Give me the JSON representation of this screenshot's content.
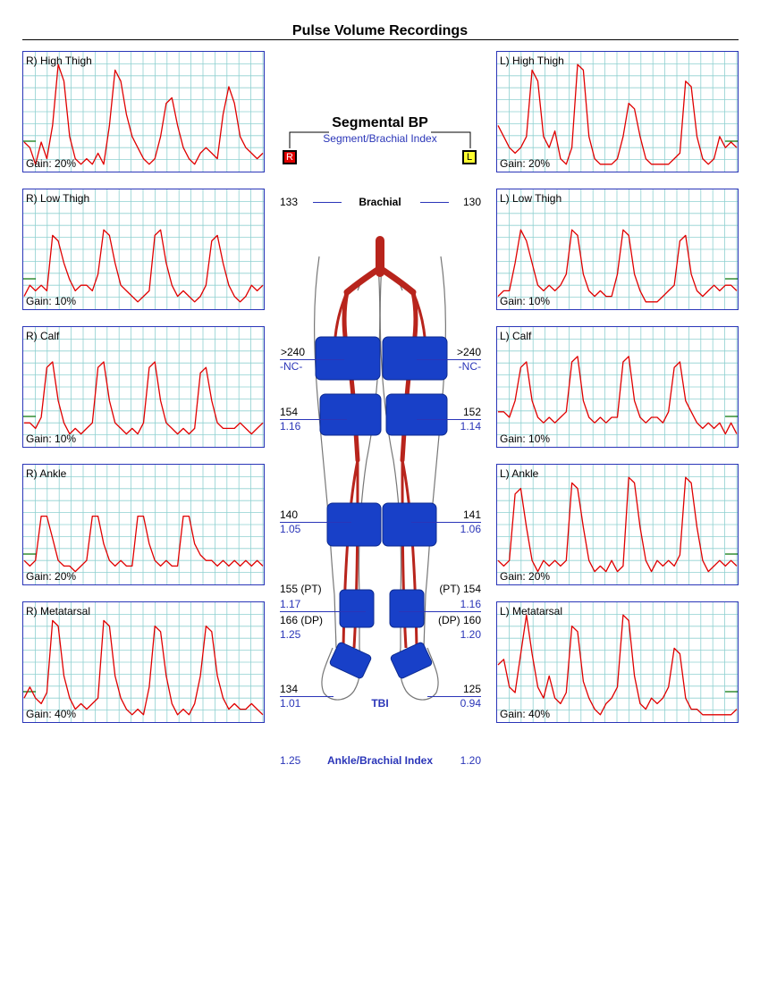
{
  "page_title": "Pulse Volume Recordings",
  "colors": {
    "waveform": "#e00000",
    "grid": "#8fd0d0",
    "frame": "#2a35b8",
    "index_text": "#2a35b8",
    "cuff": "#1840c8",
    "artery": "#b8241c",
    "gain_marker": "#007000"
  },
  "panels": {
    "right": [
      {
        "label": "R) High Thigh",
        "gain": "Gain: 20%",
        "wave": [
          0.25,
          0.2,
          0.05,
          0.25,
          0.1,
          0.4,
          0.95,
          0.8,
          0.3,
          0.1,
          0.05,
          0.1,
          0.05,
          0.15,
          0.05,
          0.4,
          0.9,
          0.8,
          0.5,
          0.3,
          0.2,
          0.1,
          0.05,
          0.1,
          0.3,
          0.6,
          0.65,
          0.4,
          0.2,
          0.1,
          0.05,
          0.15,
          0.2,
          0.15,
          0.1,
          0.5,
          0.75,
          0.6,
          0.3,
          0.2,
          0.15,
          0.1,
          0.15
        ]
      },
      {
        "label": "R) Low Thigh",
        "gain": "Gain: 10%",
        "wave": [
          0.1,
          0.2,
          0.15,
          0.2,
          0.15,
          0.65,
          0.6,
          0.4,
          0.25,
          0.15,
          0.2,
          0.2,
          0.15,
          0.3,
          0.7,
          0.65,
          0.4,
          0.2,
          0.15,
          0.1,
          0.05,
          0.1,
          0.15,
          0.65,
          0.7,
          0.4,
          0.2,
          0.1,
          0.15,
          0.1,
          0.05,
          0.1,
          0.2,
          0.6,
          0.65,
          0.4,
          0.2,
          0.1,
          0.05,
          0.1,
          0.2,
          0.15,
          0.2
        ]
      },
      {
        "label": "R) Calf",
        "gain": "Gain: 10%",
        "wave": [
          0.2,
          0.2,
          0.15,
          0.25,
          0.7,
          0.75,
          0.4,
          0.2,
          0.1,
          0.15,
          0.1,
          0.15,
          0.2,
          0.7,
          0.75,
          0.4,
          0.2,
          0.15,
          0.1,
          0.15,
          0.1,
          0.2,
          0.7,
          0.75,
          0.4,
          0.2,
          0.15,
          0.1,
          0.15,
          0.1,
          0.15,
          0.65,
          0.7,
          0.4,
          0.2,
          0.15,
          0.15,
          0.15,
          0.2,
          0.15,
          0.1,
          0.15,
          0.2
        ]
      },
      {
        "label": "R) Ankle",
        "gain": "Gain: 20%",
        "wave": [
          0.2,
          0.15,
          0.2,
          0.6,
          0.6,
          0.4,
          0.2,
          0.15,
          0.15,
          0.1,
          0.15,
          0.2,
          0.6,
          0.6,
          0.35,
          0.2,
          0.15,
          0.2,
          0.15,
          0.15,
          0.6,
          0.6,
          0.35,
          0.2,
          0.15,
          0.2,
          0.15,
          0.15,
          0.6,
          0.6,
          0.35,
          0.25,
          0.2,
          0.2,
          0.15,
          0.2,
          0.15,
          0.2,
          0.15,
          0.2,
          0.15,
          0.2,
          0.15
        ]
      },
      {
        "label": "R) Metatarsal",
        "gain": "Gain: 40%",
        "wave": [
          0.2,
          0.3,
          0.2,
          0.15,
          0.25,
          0.9,
          0.85,
          0.4,
          0.2,
          0.1,
          0.15,
          0.1,
          0.15,
          0.2,
          0.9,
          0.85,
          0.4,
          0.2,
          0.1,
          0.05,
          0.1,
          0.05,
          0.3,
          0.85,
          0.8,
          0.4,
          0.15,
          0.05,
          0.1,
          0.05,
          0.15,
          0.4,
          0.85,
          0.8,
          0.4,
          0.2,
          0.1,
          0.15,
          0.1,
          0.1,
          0.15,
          0.1,
          0.05
        ]
      }
    ],
    "left": [
      {
        "label": "L) High Thigh",
        "gain": "Gain: 20%",
        "wave": [
          0.4,
          0.3,
          0.2,
          0.15,
          0.2,
          0.3,
          0.9,
          0.8,
          0.3,
          0.2,
          0.35,
          0.1,
          0.05,
          0.2,
          0.95,
          0.9,
          0.3,
          0.1,
          0.05,
          0.05,
          0.05,
          0.1,
          0.3,
          0.6,
          0.55,
          0.3,
          0.1,
          0.05,
          0.05,
          0.05,
          0.05,
          0.1,
          0.15,
          0.8,
          0.75,
          0.3,
          0.1,
          0.05,
          0.1,
          0.3,
          0.2,
          0.25,
          0.2
        ]
      },
      {
        "label": "L) Low Thigh",
        "gain": "Gain: 10%",
        "wave": [
          0.1,
          0.15,
          0.15,
          0.4,
          0.7,
          0.6,
          0.4,
          0.2,
          0.15,
          0.2,
          0.15,
          0.2,
          0.3,
          0.7,
          0.65,
          0.3,
          0.15,
          0.1,
          0.15,
          0.1,
          0.1,
          0.3,
          0.7,
          0.65,
          0.3,
          0.15,
          0.05,
          0.05,
          0.05,
          0.1,
          0.15,
          0.2,
          0.6,
          0.65,
          0.3,
          0.15,
          0.1,
          0.15,
          0.2,
          0.15,
          0.2,
          0.2,
          0.15
        ]
      },
      {
        "label": "L) Calf",
        "gain": "Gain: 10%",
        "wave": [
          0.3,
          0.3,
          0.25,
          0.4,
          0.7,
          0.75,
          0.4,
          0.25,
          0.2,
          0.25,
          0.2,
          0.25,
          0.3,
          0.75,
          0.8,
          0.4,
          0.25,
          0.2,
          0.25,
          0.2,
          0.25,
          0.25,
          0.75,
          0.8,
          0.4,
          0.25,
          0.2,
          0.25,
          0.25,
          0.2,
          0.3,
          0.7,
          0.75,
          0.4,
          0.3,
          0.2,
          0.15,
          0.2,
          0.15,
          0.2,
          0.1,
          0.2,
          0.1
        ]
      },
      {
        "label": "L) Ankle",
        "gain": "Gain: 20%",
        "wave": [
          0.2,
          0.15,
          0.2,
          0.8,
          0.85,
          0.5,
          0.2,
          0.1,
          0.2,
          0.15,
          0.2,
          0.15,
          0.2,
          0.9,
          0.85,
          0.5,
          0.2,
          0.1,
          0.15,
          0.1,
          0.2,
          0.1,
          0.15,
          0.95,
          0.9,
          0.5,
          0.2,
          0.1,
          0.2,
          0.15,
          0.2,
          0.15,
          0.25,
          0.95,
          0.9,
          0.5,
          0.2,
          0.1,
          0.15,
          0.2,
          0.15,
          0.2,
          0.15
        ]
      },
      {
        "label": "L) Metatarsal",
        "gain": "Gain: 40%",
        "wave": [
          0.5,
          0.55,
          0.3,
          0.25,
          0.6,
          0.95,
          0.6,
          0.3,
          0.2,
          0.4,
          0.2,
          0.15,
          0.25,
          0.85,
          0.8,
          0.35,
          0.2,
          0.1,
          0.05,
          0.15,
          0.2,
          0.3,
          0.95,
          0.9,
          0.4,
          0.15,
          0.1,
          0.2,
          0.15,
          0.2,
          0.3,
          0.65,
          0.6,
          0.2,
          0.1,
          0.1,
          0.05,
          0.05,
          0.05,
          0.05,
          0.05,
          0.05,
          0.1
        ]
      }
    ]
  },
  "segmental": {
    "title": "Segmental BP",
    "subtitle": "Segment/Brachial Index",
    "right_box": "R",
    "left_box": "L",
    "brachial_label": "Brachial",
    "brachial_right": "133",
    "brachial_left": "130",
    "high_thigh_right": ">240",
    "high_thigh_right_index": "-NC-",
    "high_thigh_left": ">240",
    "high_thigh_left_index": "-NC-",
    "low_thigh_right": "154",
    "low_thigh_right_index": "1.16",
    "low_thigh_left": "152",
    "low_thigh_left_index": "1.14",
    "calf_right": "140",
    "calf_right_index": "1.05",
    "calf_left": "141",
    "calf_left_index": "1.06",
    "pt_right": "155 (PT)",
    "pt_right_index": "1.17",
    "dp_right": "166 (DP)",
    "dp_right_index": "1.25",
    "pt_left": "(PT) 154",
    "pt_left_index": "1.16",
    "dp_left": "(DP) 160",
    "dp_left_index": "1.20",
    "toe_right": "134",
    "toe_right_index": "1.01",
    "toe_left": "125",
    "toe_left_index": "0.94",
    "tbi_label": "TBI",
    "abi_label": "Ankle/Brachial Index",
    "abi_right": "1.25",
    "abi_left": "1.20"
  }
}
